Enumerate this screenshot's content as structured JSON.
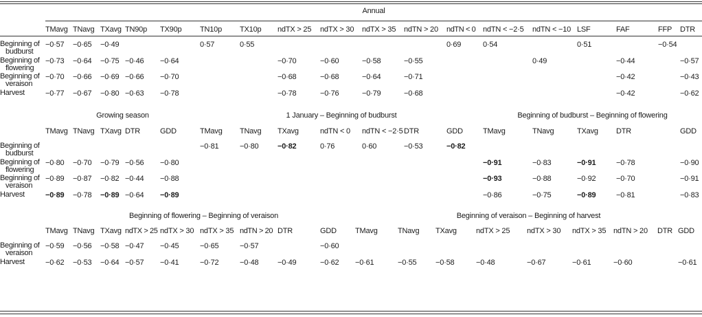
{
  "sections": [
    {
      "title": "Annual",
      "headers": [
        "TMavg",
        "TNavg",
        "TXavg",
        "TN90p",
        "TX90p",
        "TN10p",
        "TX10p",
        "ndTX > 25",
        "ndTX > 30",
        "ndTX > 35",
        "ndTN > 20",
        "ndTN < 0",
        "ndTN < −2·5",
        "ndTN < −10",
        "LSF",
        "FAF",
        "FFP",
        "DTR"
      ],
      "rows": [
        {
          "label": [
            "Beginning of",
            "budburst"
          ],
          "values": [
            "−0·57",
            "−0·65",
            "−0·49",
            "",
            "",
            "0·57",
            "0·55",
            "",
            "",
            "",
            "",
            "0·69",
            "0·54",
            "",
            "0·51",
            "",
            "−0·54",
            ""
          ],
          "bold": []
        },
        {
          "label": [
            "Beginning of",
            "flowering"
          ],
          "values": [
            "−0·73",
            "−0·64",
            "−0·75",
            "−0·46",
            "−0·64",
            "",
            "",
            "−0·70",
            "−0·60",
            "−0·58",
            "−0·55",
            "",
            "",
            "0·49",
            "",
            "−0·44",
            "",
            "−0·57"
          ],
          "bold": []
        },
        {
          "label": [
            "Beginning of",
            "veraison"
          ],
          "values": [
            "−0·70",
            "−0·66",
            "−0·69",
            "−0·66",
            "−0·70",
            "",
            "",
            "−0·68",
            "−0·68",
            "−0·64",
            "−0·71",
            "",
            "",
            "",
            "",
            "−0·42",
            "",
            "−0·43"
          ],
          "bold": []
        },
        {
          "label": [
            "Harvest"
          ],
          "values": [
            "−0·77",
            "−0·67",
            "−0·80",
            "−0·63",
            "−0·78",
            "",
            "",
            "−0·78",
            "−0·76",
            "−0·79",
            "−0·68",
            "",
            "",
            "",
            "",
            "−0·42",
            "",
            "−0·62"
          ],
          "bold": []
        }
      ]
    },
    {
      "title": "Growing season",
      "headers": [
        "TMavg",
        "TNavg",
        "TXavg",
        "DTR",
        "GDD"
      ],
      "rows": [
        {
          "label": [
            "Beginning of",
            "budburst"
          ],
          "values": [
            "",
            "",
            "",
            "",
            ""
          ],
          "bold": []
        },
        {
          "label": [
            "Beginning of",
            "flowering"
          ],
          "values": [
            "−0·80",
            "−0·70",
            "−0·79",
            "−0·56",
            "−0·80"
          ],
          "bold": []
        },
        {
          "label": [
            "Beginning of",
            "veraison"
          ],
          "values": [
            "−0·89",
            "−0·87",
            "−0·82",
            "−0·44",
            "−0·88"
          ],
          "bold": []
        },
        {
          "label": [
            "Harvest"
          ],
          "values": [
            "−0·89",
            "−0·78",
            "−0·89",
            "−0·64",
            "−0·89"
          ],
          "bold": [
            0,
            2,
            4
          ]
        }
      ]
    },
    {
      "title": "1 January – Beginning of budburst",
      "headers": [
        "TMavg",
        "TNavg",
        "TXavg",
        "ndTN < 0",
        "ndTN < −2·5",
        "DTR",
        "GDD"
      ],
      "rows": [
        {
          "values": [
            "−0·81",
            "−0·80",
            "−0·82",
            "0·76",
            "0·60",
            "−0·53",
            "−0·82"
          ],
          "bold": [
            2,
            6
          ]
        },
        {
          "values": [
            "",
            "",
            "",
            "",
            "",
            "",
            ""
          ],
          "bold": []
        },
        {
          "values": [
            "",
            "",
            "",
            "",
            "",
            "",
            ""
          ],
          "bold": []
        },
        {
          "values": [
            "",
            "",
            "",
            "",
            "",
            "",
            ""
          ],
          "bold": []
        }
      ]
    },
    {
      "title": "Beginning of budburst – Beginning of flowering",
      "headers": [
        "TMavg",
        "TNavg",
        "TXavg",
        "DTR",
        "",
        "GDD"
      ],
      "rows": [
        {
          "values": [
            "",
            "",
            "",
            "",
            "",
            ""
          ],
          "bold": []
        },
        {
          "values": [
            "−0·91",
            "−0·83",
            "−0·91",
            "−0·78",
            "",
            "−0·90"
          ],
          "bold": [
            0,
            2
          ]
        },
        {
          "values": [
            "−0·93",
            "−0·88",
            "−0·92",
            "−0·70",
            "",
            "−0·91"
          ],
          "bold": [
            0
          ]
        },
        {
          "values": [
            "−0·86",
            "−0·75",
            "−0·89",
            "−0·81",
            "",
            "−0·83"
          ],
          "bold": [
            2
          ]
        }
      ]
    },
    {
      "title": "Beginning of flowering – Beginning of veraison",
      "headers": [
        "TMavg",
        "TNavg",
        "TXavg",
        "ndTX > 25",
        "ndTX > 30",
        "ndTX > 35",
        "ndTN > 20",
        "DTR",
        "GDD"
      ],
      "rows": [
        {
          "label": [
            "Beginning of",
            "veraison"
          ],
          "values": [
            "−0·59",
            "−0·56",
            "−0·58",
            "−0·47",
            "−0·45",
            "−0·65",
            "−0·57",
            "",
            "−0·60"
          ],
          "bold": []
        },
        {
          "label": [
            "Harvest"
          ],
          "values": [
            "−0·62",
            "−0·53",
            "−0·64",
            "−0·57",
            "−0·41",
            "−0·72",
            "−0·48",
            "−0·49",
            "−0·62"
          ],
          "bold": []
        }
      ]
    },
    {
      "title": "Beginning of veraison – Beginning of harvest",
      "headers": [
        "TMavg",
        "TNavg",
        "TXavg",
        "ndTX > 25",
        "ndTX > 30",
        "ndTX > 35",
        "ndTN > 20",
        "DTR",
        "GDD"
      ],
      "rows": [
        {
          "values": [
            "",
            "",
            "",
            "",
            "",
            "",
            "",
            "",
            ""
          ],
          "bold": []
        },
        {
          "values": [
            "−0·61",
            "−0·55",
            "−0·58",
            "−0·48",
            "−0·67",
            "−0·61",
            "−0·60",
            "",
            "−0·61"
          ],
          "bold": []
        }
      ]
    }
  ]
}
